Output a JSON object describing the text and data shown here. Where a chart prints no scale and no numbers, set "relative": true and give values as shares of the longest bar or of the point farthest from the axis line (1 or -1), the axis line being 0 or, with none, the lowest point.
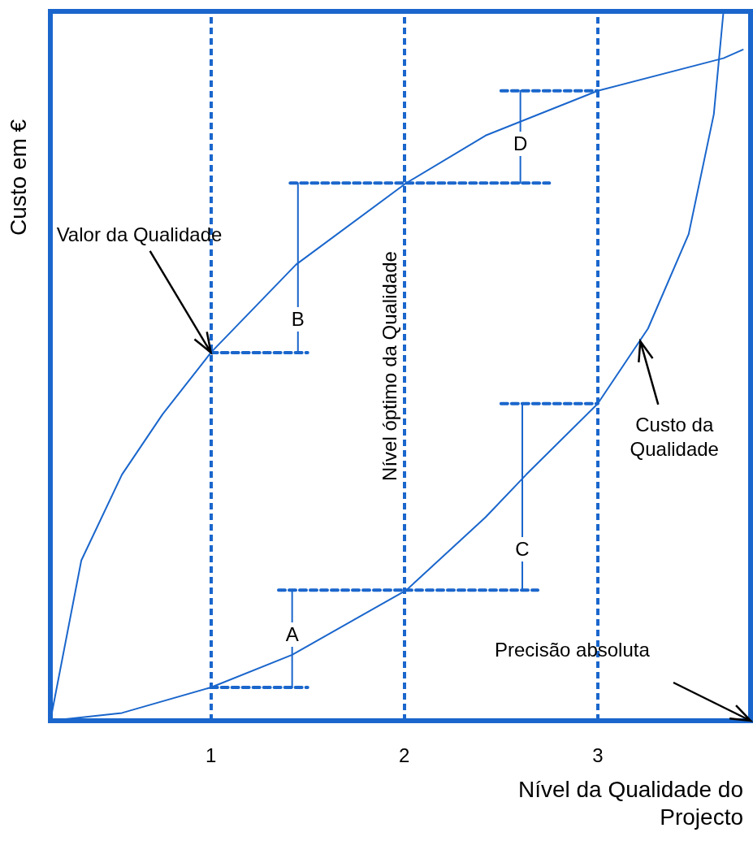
{
  "chart_data": {
    "type": "line",
    "relative": true,
    "xlabel": "Nível da Qualidade do Projecto",
    "ylabel": "Custo em €",
    "xlim": [
      0.17,
      3.79
    ],
    "xticks": [
      1,
      2,
      3
    ],
    "marker": "none",
    "line_style": "solid",
    "grid": false,
    "series": [
      {
        "color": "#1a66cc",
        "x": [
          0.17,
          0.33,
          0.54,
          0.75,
          1.0,
          1.44,
          2.01,
          2.42,
          3.0,
          3.65,
          3.75
        ],
        "values": [
          0,
          0.226,
          0.347,
          0.432,
          0.519,
          0.643,
          0.758,
          0.825,
          0.888,
          0.934,
          0.946
        ]
      },
      {
        "color": "#1a66cc",
        "x": [
          0.17,
          0.54,
          1.0,
          1.42,
          2.01,
          2.42,
          2.63,
          3.0,
          3.26,
          3.47,
          3.6,
          3.65
        ],
        "values": [
          0,
          0.011,
          0.047,
          0.093,
          0.184,
          0.287,
          0.347,
          0.447,
          0.553,
          0.686,
          0.855,
          1.0
        ]
      },
      {
        "color": "#1a66cc",
        "line_style": "dashed",
        "x": [
          1.0,
          1.5
        ],
        "values": [
          0.519,
          0.519
        ]
      },
      {
        "color": "#1a66cc",
        "line_style": "dashed",
        "x": [
          1.0,
          1.5
        ],
        "values": [
          0.047,
          0.047
        ]
      },
      {
        "color": "#1a66cc",
        "line_style": "dashed",
        "x": [
          1.41,
          2.75
        ],
        "values": [
          0.758,
          0.758
        ]
      },
      {
        "color": "#1a66cc",
        "line_style": "dashed",
        "x": [
          1.35,
          2.69
        ],
        "values": [
          0.184,
          0.184
        ]
      },
      {
        "color": "#1a66cc",
        "line_style": "dashed",
        "x": [
          2.5,
          3.0
        ],
        "values": [
          0.888,
          0.888
        ]
      },
      {
        "color": "#1a66cc",
        "line_style": "dashed",
        "x": [
          2.5,
          3.0
        ],
        "values": [
          0.447,
          0.447
        ]
      },
      {
        "color": "#1a66cc",
        "x": [
          1.42,
          1.42
        ],
        "values": [
          0.047,
          0.184
        ]
      },
      {
        "color": "#1a66cc",
        "x": [
          1.45,
          1.45
        ],
        "values": [
          0.519,
          0.758
        ]
      },
      {
        "color": "#1a66cc",
        "x": [
          2.61,
          2.61
        ],
        "values": [
          0.184,
          0.447
        ]
      },
      {
        "color": "#1a66cc",
        "x": [
          2.6,
          2.6
        ],
        "values": [
          0.758,
          0.888
        ]
      }
    ],
    "ref_lines": [
      {
        "axis": "x",
        "value": 1,
        "color": "#1a66cc",
        "line_style": "dashed"
      },
      {
        "axis": "x",
        "value": 2,
        "label": "Nível óptimo da Qualidade",
        "color": "#1a66cc",
        "line_style": "dashed"
      },
      {
        "axis": "x",
        "value": 3,
        "color": "#1a66cc",
        "line_style": "dashed"
      }
    ],
    "annotations": [
      {
        "text": "Valor da Qualidade",
        "x": 1.0,
        "y": 0.519
      },
      {
        "text": "Custo da Qualidade",
        "x": 3.22,
        "y": 0.535
      },
      "Precisão absoluta",
      {
        "text": "A",
        "x": 1.42,
        "y": 0.12
      },
      {
        "text": "B",
        "x": 1.45,
        "y": 0.565
      },
      {
        "text": "C",
        "x": 2.61,
        "y": 0.24
      },
      {
        "text": "D",
        "x": 2.6,
        "y": 0.812
      }
    ]
  }
}
